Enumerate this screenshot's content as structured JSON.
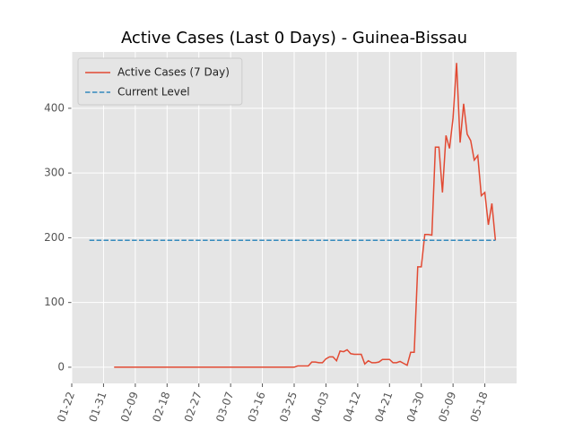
{
  "chart_data": {
    "type": "line",
    "title": "Active Cases (Last 0 Days) - Guinea-Bissau",
    "xlim": [
      "01-22",
      "05-27"
    ],
    "xticks": [
      "01-22",
      "01-31",
      "02-09",
      "02-18",
      "02-27",
      "03-07",
      "03-16",
      "03-25",
      "04-03",
      "04-12",
      "04-21",
      "04-30",
      "05-09",
      "05-18"
    ],
    "ylim": [
      -25,
      487
    ],
    "yticks": [
      0,
      100,
      200,
      300,
      400
    ],
    "grid": true,
    "legend": "upper left",
    "series": [
      {
        "name": "Active Cases (7 Day)",
        "color": "#e24a33",
        "style": "solid",
        "x": [
          "02-03",
          "02-04",
          "02-05",
          "02-06",
          "02-07",
          "02-08",
          "02-09",
          "02-10",
          "02-11",
          "02-12",
          "02-13",
          "02-14",
          "02-15",
          "02-16",
          "02-17",
          "02-18",
          "02-19",
          "02-20",
          "02-21",
          "02-22",
          "02-23",
          "02-24",
          "02-25",
          "02-26",
          "02-27",
          "02-28",
          "02-29",
          "03-01",
          "03-02",
          "03-03",
          "03-04",
          "03-05",
          "03-06",
          "03-07",
          "03-08",
          "03-09",
          "03-10",
          "03-11",
          "03-12",
          "03-13",
          "03-14",
          "03-15",
          "03-16",
          "03-17",
          "03-18",
          "03-19",
          "03-20",
          "03-21",
          "03-22",
          "03-23",
          "03-24",
          "03-25",
          "03-26",
          "03-27",
          "03-28",
          "03-29",
          "03-30",
          "03-31",
          "04-01",
          "04-02",
          "04-03",
          "04-04",
          "04-05",
          "04-06",
          "04-07",
          "04-08",
          "04-09",
          "04-10",
          "04-11",
          "04-12",
          "04-13",
          "04-14",
          "04-15",
          "04-16",
          "04-17",
          "04-18",
          "04-19",
          "04-20",
          "04-21",
          "04-22",
          "04-23",
          "04-24",
          "04-25",
          "04-26",
          "04-27",
          "04-28",
          "04-29",
          "04-30",
          "05-01",
          "05-02",
          "05-03",
          "05-04",
          "05-05",
          "05-06",
          "05-07",
          "05-08",
          "05-09",
          "05-10",
          "05-11",
          "05-12",
          "05-13",
          "05-14",
          "05-15",
          "05-16",
          "05-17",
          "05-18",
          "05-19",
          "05-20",
          "05-21"
        ],
        "values": [
          0,
          0,
          0,
          0,
          0,
          0,
          0,
          0,
          0,
          0,
          0,
          0,
          0,
          0,
          0,
          0,
          0,
          0,
          0,
          0,
          0,
          0,
          0,
          0,
          0,
          0,
          0,
          0,
          0,
          0,
          0,
          0,
          0,
          0,
          0,
          0,
          0,
          0,
          0,
          0,
          0,
          0,
          0,
          0,
          0,
          0,
          0,
          0,
          0,
          0,
          0,
          0,
          2,
          2,
          2,
          2,
          8,
          8,
          7,
          7,
          13,
          16,
          16,
          10,
          25,
          24,
          27,
          21,
          20,
          20,
          20,
          5,
          10,
          7,
          7,
          8,
          12,
          12,
          12,
          7,
          7,
          9,
          6,
          3,
          23,
          23,
          155,
          155,
          205,
          205,
          204,
          340,
          340,
          270,
          358,
          338,
          385,
          470,
          347,
          407,
          360,
          350,
          320,
          327,
          265,
          270,
          220,
          253,
          196
        ]
      },
      {
        "name": "Current Level",
        "color": "#348abd",
        "style": "dashed",
        "x": [
          "01-27",
          "05-21"
        ],
        "values": [
          196,
          196
        ]
      }
    ]
  }
}
